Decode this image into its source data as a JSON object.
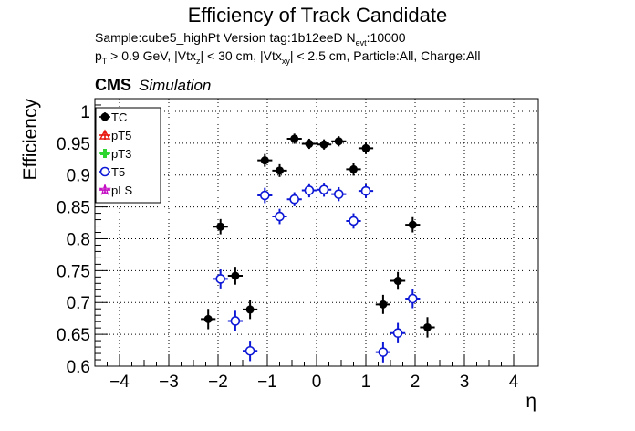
{
  "header": {
    "title": "Efficiency of Track Candidate",
    "sample_line": "Sample:cube5_highPt   Version tag:1b12eeD  N",
    "sample_sub": "evt",
    "sample_tail": ":10000",
    "cuts": [
      {
        "t": "p"
      },
      {
        "s": "T"
      },
      {
        "t": " > 0.9 GeV, |Vtx"
      },
      {
        "s": "z"
      },
      {
        "t": "| < 30 cm, |Vtx"
      },
      {
        "s": "xy"
      },
      {
        "t": "| < 2.5 cm, Particle:All, Charge:All"
      }
    ],
    "cms": "CMS",
    "simulation": "Simulation"
  },
  "chart_data": {
    "type": "scatter",
    "title": "Efficiency of Track Candidate",
    "xlabel": "η",
    "ylabel": "Efficiency",
    "xlim": [
      -4.5,
      4.5
    ],
    "ylim": [
      0.6,
      1.02
    ],
    "xticks": [
      -4,
      -3,
      -2,
      -1,
      0,
      1,
      2,
      3,
      4
    ],
    "yticks": [
      0.6,
      0.65,
      0.7,
      0.75,
      0.8,
      0.85,
      0.9,
      0.95,
      1
    ],
    "grid": true,
    "legend_position": "top-left",
    "series": [
      {
        "name": "TC",
        "color": "#000000",
        "marker": "filled-circle",
        "points": [
          {
            "x": -2.2,
            "y": 0.674,
            "xerr": 0.15,
            "yerr": 0.016
          },
          {
            "x": -1.95,
            "y": 0.819,
            "xerr": 0.15,
            "yerr": 0.012
          },
          {
            "x": -1.65,
            "y": 0.742,
            "xerr": 0.15,
            "yerr": 0.014
          },
          {
            "x": -1.35,
            "y": 0.689,
            "xerr": 0.15,
            "yerr": 0.015
          },
          {
            "x": -1.05,
            "y": 0.923,
            "xerr": 0.15,
            "yerr": 0.01
          },
          {
            "x": -0.75,
            "y": 0.907,
            "xerr": 0.15,
            "yerr": 0.01
          },
          {
            "x": -0.45,
            "y": 0.957,
            "xerr": 0.15,
            "yerr": 0.008
          },
          {
            "x": -0.15,
            "y": 0.949,
            "xerr": 0.15,
            "yerr": 0.008
          },
          {
            "x": 0.15,
            "y": 0.948,
            "xerr": 0.15,
            "yerr": 0.008
          },
          {
            "x": 0.45,
            "y": 0.953,
            "xerr": 0.15,
            "yerr": 0.008
          },
          {
            "x": 0.75,
            "y": 0.909,
            "xerr": 0.15,
            "yerr": 0.01
          },
          {
            "x": 1.0,
            "y": 0.942,
            "xerr": 0.15,
            "yerr": 0.009
          },
          {
            "x": 1.35,
            "y": 0.697,
            "xerr": 0.15,
            "yerr": 0.015
          },
          {
            "x": 1.65,
            "y": 0.734,
            "xerr": 0.15,
            "yerr": 0.014
          },
          {
            "x": 1.95,
            "y": 0.822,
            "xerr": 0.15,
            "yerr": 0.012
          },
          {
            "x": 2.25,
            "y": 0.661,
            "xerr": 0.15,
            "yerr": 0.016
          }
        ]
      },
      {
        "name": "pT5",
        "color": "#e8150d",
        "marker": "open-triangle",
        "points": []
      },
      {
        "name": "pT3",
        "color": "#2fd52f",
        "marker": "filled-cross",
        "points": []
      },
      {
        "name": "T5",
        "color": "#0d18d6",
        "marker": "open-circle",
        "points": [
          {
            "x": -1.95,
            "y": 0.737,
            "xerr": 0.15,
            "yerr": 0.015
          },
          {
            "x": -1.65,
            "y": 0.671,
            "xerr": 0.15,
            "yerr": 0.016
          },
          {
            "x": -1.35,
            "y": 0.624,
            "xerr": 0.15,
            "yerr": 0.016
          },
          {
            "x": -1.05,
            "y": 0.868,
            "xerr": 0.15,
            "yerr": 0.012
          },
          {
            "x": -0.75,
            "y": 0.835,
            "xerr": 0.15,
            "yerr": 0.012
          },
          {
            "x": -0.45,
            "y": 0.862,
            "xerr": 0.15,
            "yerr": 0.011
          },
          {
            "x": -0.15,
            "y": 0.876,
            "xerr": 0.15,
            "yerr": 0.011
          },
          {
            "x": 0.15,
            "y": 0.877,
            "xerr": 0.15,
            "yerr": 0.011
          },
          {
            "x": 0.45,
            "y": 0.87,
            "xerr": 0.15,
            "yerr": 0.011
          },
          {
            "x": 0.75,
            "y": 0.828,
            "xerr": 0.15,
            "yerr": 0.012
          },
          {
            "x": 1.0,
            "y": 0.875,
            "xerr": 0.15,
            "yerr": 0.011
          },
          {
            "x": 1.35,
            "y": 0.622,
            "xerr": 0.15,
            "yerr": 0.016
          },
          {
            "x": 1.65,
            "y": 0.652,
            "xerr": 0.15,
            "yerr": 0.016
          },
          {
            "x": 1.95,
            "y": 0.706,
            "xerr": 0.15,
            "yerr": 0.015
          }
        ]
      },
      {
        "name": "pLS",
        "color": "#c30dc3",
        "marker": "open-star",
        "points": []
      }
    ]
  }
}
